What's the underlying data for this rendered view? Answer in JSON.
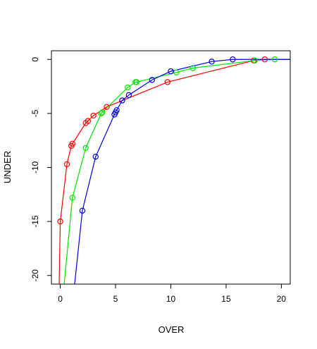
{
  "chart_data": {
    "type": "line",
    "title": "",
    "xlabel": "OVER",
    "ylabel": "UNDER",
    "xlim": [
      -0.8,
      20.8
    ],
    "ylim": [
      -20.8,
      0.8
    ],
    "xticks": [
      0,
      5,
      10,
      15,
      20
    ],
    "yticks": [
      0,
      -5,
      -10,
      -15,
      -20
    ],
    "grid": false,
    "legend": "none",
    "series": [
      {
        "color": "#ff0000",
        "points": [
          [
            0.0,
            -15.0
          ],
          [
            0.6,
            -9.7
          ],
          [
            1.0,
            -8.0
          ],
          [
            1.1,
            -7.8
          ],
          [
            2.3,
            -5.9
          ],
          [
            2.5,
            -5.7
          ],
          [
            3.0,
            -5.2
          ],
          [
            4.2,
            -4.4
          ],
          [
            9.7,
            -2.1
          ],
          [
            17.5,
            -0.1
          ],
          [
            18.5,
            0.0
          ],
          [
            20.8,
            0.0
          ]
        ],
        "line_extends_to": [
          [
            -0.1,
            -20.8
          ]
        ],
        "markers": [
          [
            0.0,
            -15.0
          ],
          [
            0.6,
            -9.7
          ],
          [
            1.0,
            -8.0
          ],
          [
            1.1,
            -7.8
          ],
          [
            2.3,
            -5.9
          ],
          [
            2.5,
            -5.7
          ],
          [
            3.0,
            -5.2
          ],
          [
            4.2,
            -4.4
          ],
          [
            9.7,
            -2.1
          ],
          [
            17.5,
            -0.1
          ],
          [
            18.5,
            0.0
          ]
        ]
      },
      {
        "color": "#00e600",
        "points": [
          [
            1.1,
            -12.8
          ],
          [
            2.3,
            -8.2
          ],
          [
            3.7,
            -5.0
          ],
          [
            3.8,
            -4.9
          ],
          [
            6.1,
            -2.6
          ],
          [
            6.8,
            -2.1
          ],
          [
            6.9,
            -2.1
          ],
          [
            10.5,
            -1.2
          ],
          [
            12.0,
            -0.8
          ],
          [
            17.6,
            -0.1
          ],
          [
            19.4,
            0.0
          ],
          [
            20.8,
            0.0
          ]
        ],
        "line_extends_to": [
          [
            0.35,
            -20.8
          ]
        ],
        "markers": [
          [
            1.1,
            -12.8
          ],
          [
            2.3,
            -8.2
          ],
          [
            3.7,
            -5.0
          ],
          [
            3.8,
            -4.9
          ],
          [
            6.1,
            -2.6
          ],
          [
            6.8,
            -2.1
          ],
          [
            6.9,
            -2.1
          ],
          [
            10.5,
            -1.2
          ],
          [
            12.0,
            -0.8
          ],
          [
            17.6,
            -0.1
          ],
          [
            19.4,
            0.0
          ]
        ]
      },
      {
        "color": "#0000e6",
        "points": [
          [
            2.0,
            -14.0
          ],
          [
            3.2,
            -9.0
          ],
          [
            4.9,
            -5.1
          ],
          [
            5.0,
            -4.9
          ],
          [
            5.1,
            -4.7
          ],
          [
            5.6,
            -3.8
          ],
          [
            6.2,
            -3.3
          ],
          [
            8.3,
            -1.9
          ],
          [
            10.0,
            -1.1
          ],
          [
            13.7,
            -0.2
          ],
          [
            15.6,
            0.0
          ],
          [
            20.8,
            0.0
          ]
        ],
        "line_extends_to": [
          [
            1.3,
            -20.8
          ]
        ],
        "markers": [
          [
            2.0,
            -14.0
          ],
          [
            3.2,
            -9.0
          ],
          [
            4.9,
            -5.1
          ],
          [
            5.0,
            -4.9
          ],
          [
            5.1,
            -4.7
          ],
          [
            5.6,
            -3.8
          ],
          [
            6.2,
            -3.3
          ],
          [
            8.3,
            -1.9
          ],
          [
            10.0,
            -1.1
          ],
          [
            13.7,
            -0.2
          ],
          [
            15.6,
            0.0
          ]
        ]
      }
    ]
  }
}
